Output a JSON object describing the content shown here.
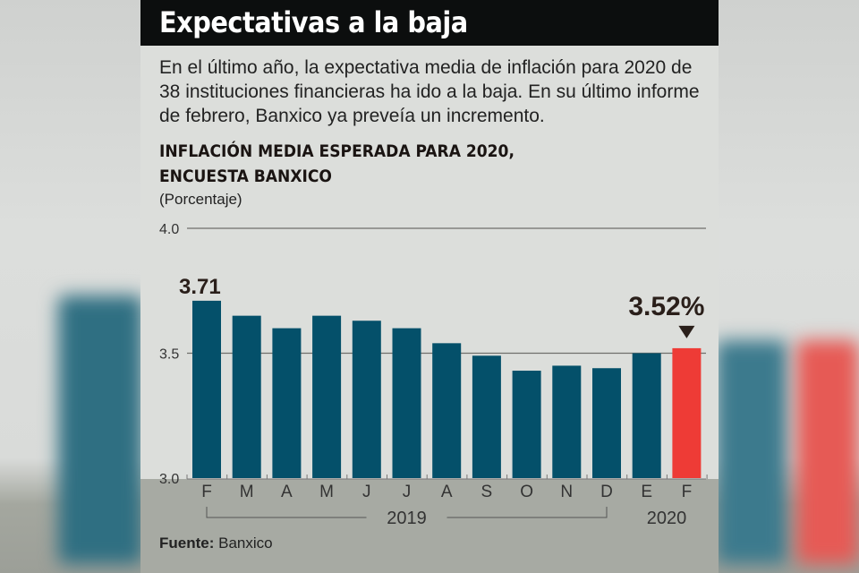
{
  "header": {
    "title": "Expectativas a la baja"
  },
  "intro": "En el último año, la expectativa media de inflación para 2020 de 38 instituciones financieras ha ido a la baja. En su último informe de febrero, Banxico ya preveía un incremento.",
  "source": {
    "label": "Fuente:",
    "value": "Banxico"
  },
  "colors": {
    "bar": "#04506a",
    "highlight": "#ee3b36",
    "header_bg": "#0c0e0e",
    "panel_bg": "#dcdedb"
  },
  "chart_data": {
    "type": "bar",
    "title": "INFLACIÓN MEDIA ESPERADA PARA 2020, ENCUESTA BANXICO",
    "title_lines": [
      "INFLACIÓN MEDIA ESPERADA PARA 2020,",
      "ENCUESTA BANXICO"
    ],
    "unit_label": "(Porcentaje)",
    "categories": [
      "F",
      "M",
      "A",
      "M",
      "J",
      "J",
      "A",
      "S",
      "O",
      "N",
      "D",
      "E",
      "F"
    ],
    "year_groups": [
      {
        "label": "2019",
        "from": 0,
        "to": 10
      },
      {
        "label": "2020",
        "from": 11,
        "to": 12
      }
    ],
    "values": [
      3.71,
      3.65,
      3.6,
      3.65,
      3.63,
      3.6,
      3.54,
      3.49,
      3.43,
      3.45,
      3.44,
      3.5,
      3.52
    ],
    "highlight_index": 12,
    "annotations": [
      {
        "index": 0,
        "text": "3.71"
      },
      {
        "index": 12,
        "text": "3.52%",
        "arrow": "down"
      }
    ],
    "yticks": [
      "3.0",
      "3.5",
      "4.0"
    ],
    "ytick_values": [
      3.0,
      3.5,
      4.0
    ],
    "ylim": [
      3.0,
      4.0
    ],
    "grid": true,
    "xlabel": "",
    "ylabel": "Porcentaje"
  }
}
